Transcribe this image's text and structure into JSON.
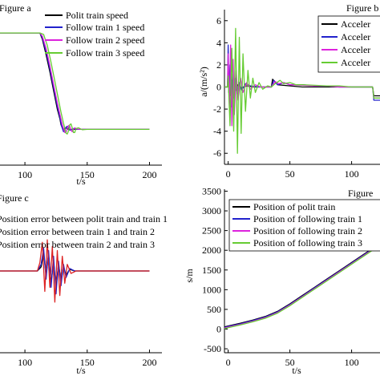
{
  "chart_data": [
    {
      "panel_label": "Figure a",
      "type": "line",
      "xlabel": "t/s",
      "x_ticks": [
        100,
        150,
        200
      ],
      "xlim": [
        80,
        210
      ],
      "ylim": [
        0,
        1
      ],
      "legend_position": "top-right",
      "series": [
        {
          "name": "Polit train speed",
          "color": "#000000",
          "x": [
            80,
            112,
            114,
            117,
            120,
            123,
            126,
            128,
            129,
            130,
            131,
            132,
            133,
            134,
            135,
            136,
            138,
            140,
            145,
            150,
            200
          ],
          "y": [
            0.85,
            0.85,
            0.81,
            0.71,
            0.6,
            0.48,
            0.36,
            0.3,
            0.26,
            0.24,
            0.23,
            0.235,
            0.24,
            0.235,
            0.23,
            0.23,
            0.23,
            0.23,
            0.23,
            0.23,
            0.23
          ]
        },
        {
          "name": "Follow train 1 speed",
          "color": "#2222cc",
          "x": [
            80,
            112,
            114,
            117,
            120,
            123,
            126,
            128,
            129.5,
            131,
            132,
            133,
            134,
            135,
            136,
            137,
            139,
            142,
            145,
            150,
            200
          ],
          "y": [
            0.85,
            0.85,
            0.82,
            0.73,
            0.62,
            0.5,
            0.38,
            0.31,
            0.25,
            0.215,
            0.22,
            0.245,
            0.25,
            0.24,
            0.225,
            0.225,
            0.235,
            0.23,
            0.23,
            0.23,
            0.23
          ]
        },
        {
          "name": "Follow train 2 speed",
          "color": "#dd22dd",
          "x": [
            80,
            112,
            114,
            117,
            120,
            123,
            126,
            128,
            130,
            132,
            133,
            134,
            135,
            136,
            137,
            138,
            139,
            140,
            142,
            145,
            150,
            200
          ],
          "y": [
            0.85,
            0.85,
            0.83,
            0.75,
            0.64,
            0.52,
            0.4,
            0.33,
            0.26,
            0.21,
            0.21,
            0.235,
            0.255,
            0.25,
            0.225,
            0.215,
            0.23,
            0.24,
            0.232,
            0.23,
            0.23,
            0.23
          ]
        },
        {
          "name": "Follow train 3 speed",
          "color": "#66cc33",
          "x": [
            80,
            112,
            115,
            118,
            121,
            124,
            127,
            129,
            131,
            133,
            134,
            135,
            136,
            137,
            138,
            139,
            140,
            141,
            143,
            146,
            150,
            200
          ],
          "y": [
            0.85,
            0.85,
            0.84,
            0.77,
            0.66,
            0.54,
            0.42,
            0.34,
            0.27,
            0.205,
            0.2,
            0.22,
            0.26,
            0.265,
            0.24,
            0.21,
            0.21,
            0.235,
            0.24,
            0.228,
            0.23,
            0.23
          ]
        }
      ]
    },
    {
      "panel_label": "Figure b",
      "type": "line",
      "xlabel": "",
      "ylabel": "a/(m/s²)",
      "x_ticks": [
        0,
        50,
        100
      ],
      "y_ticks": [
        -6,
        -4,
        -2,
        0,
        2,
        4,
        6
      ],
      "xlim": [
        -3,
        123
      ],
      "ylim": [
        -7,
        7
      ],
      "legend_position": "top-right",
      "series": [
        {
          "name": "Acceler",
          "color": "#000000",
          "x": [
            -3,
            -0.5,
            0,
            0.5,
            1,
            2,
            3,
            4,
            5,
            6,
            8,
            10,
            15,
            20,
            30,
            35,
            36,
            40,
            50,
            60,
            70,
            80,
            90,
            100,
            110,
            117,
            118,
            123
          ],
          "y": [
            0,
            0,
            2.0,
            -0.5,
            0.8,
            -0.8,
            0.6,
            -0.4,
            0.4,
            -0.3,
            0.2,
            -0.1,
            0.1,
            0,
            0,
            0,
            0.7,
            0.2,
            0.1,
            0,
            0,
            0,
            0,
            0,
            0,
            0,
            -0.8,
            -0.8
          ]
        },
        {
          "name": "Acceler",
          "color": "#2222cc",
          "x": [
            -3,
            -0.5,
            0,
            0.7,
            1.5,
            2.5,
            3.5,
            4.5,
            5.5,
            7,
            9,
            11,
            14,
            18,
            25,
            30,
            35,
            37,
            40,
            45,
            50,
            60,
            70,
            80,
            90,
            100,
            110,
            117,
            118,
            123
          ],
          "y": [
            0,
            0,
            3.8,
            -0.6,
            2.0,
            -1.8,
            1.2,
            -1.0,
            0.8,
            -0.6,
            0.4,
            -0.3,
            0.3,
            0.1,
            0,
            0,
            0,
            0.6,
            0.2,
            0.4,
            0.2,
            0.2,
            0.1,
            0.1,
            0,
            0,
            0,
            0,
            -1.2,
            -1.2
          ]
        },
        {
          "name": "Acceler",
          "color": "#dd22dd",
          "x": [
            -3,
            -0.5,
            0,
            1,
            2,
            3,
            4,
            5,
            6.5,
            8,
            10,
            12,
            15,
            18,
            22,
            26,
            30,
            35,
            38,
            41,
            45,
            50,
            60,
            70,
            80,
            90,
            100,
            110,
            117,
            118,
            123
          ],
          "y": [
            0,
            0,
            3.0,
            -2.0,
            3.8,
            -3.5,
            2.5,
            -2.5,
            1.5,
            -1.2,
            0.8,
            -0.5,
            0.4,
            -0.2,
            0.2,
            0,
            0,
            0,
            0.5,
            0.3,
            0.4,
            0.2,
            0.15,
            0.1,
            0.1,
            0,
            0,
            0,
            0,
            -1.0,
            -1.0
          ]
        },
        {
          "name": "Acceler",
          "color": "#66cc33",
          "x": [
            -3,
            -0.5,
            0,
            1.5,
            3,
            4.5,
            6,
            7.5,
            9,
            10.5,
            12,
            14,
            16,
            18,
            20,
            22,
            25,
            28,
            32,
            35,
            38,
            42,
            45,
            50,
            55,
            60,
            70,
            80,
            90,
            100,
            110,
            117,
            118,
            123
          ],
          "y": [
            0,
            0,
            1.0,
            -3.5,
            3.5,
            -4.0,
            5.3,
            -6.0,
            4.5,
            -4.2,
            3.0,
            -2.2,
            1.5,
            -1.0,
            0.8,
            -0.5,
            0.4,
            -0.2,
            0.1,
            0,
            0.3,
            0.6,
            0.3,
            0.4,
            0.2,
            0.2,
            0.15,
            0.1,
            0.1,
            0,
            0,
            0,
            -1.0,
            -1.0
          ]
        }
      ]
    },
    {
      "panel_label": "Figure c",
      "type": "line",
      "xlabel": "t/s",
      "x_ticks": [
        100,
        150,
        200
      ],
      "xlim": [
        80,
        210
      ],
      "ylim": [
        -1,
        1
      ],
      "legend_position": "top-right",
      "series": [
        {
          "name": "Position error between polit train and train 1",
          "color": "#000000",
          "x": [
            80,
            110,
            113,
            115,
            117,
            119,
            121,
            123,
            125,
            127,
            129,
            131,
            133,
            136,
            140,
            150,
            200
          ],
          "y": [
            0,
            0,
            0.05,
            0.22,
            -0.05,
            0.2,
            -0.15,
            0.12,
            -0.2,
            0.08,
            -0.12,
            0.05,
            -0.05,
            0.02,
            0,
            0,
            0
          ]
        },
        {
          "name": "Position error between  train 1 and train 2",
          "color": "#2222cc",
          "x": [
            80,
            110,
            113,
            115,
            117,
            119,
            121,
            123,
            125,
            127,
            129,
            131,
            133,
            136,
            140,
            150,
            200
          ],
          "y": [
            0,
            0,
            0.08,
            0.28,
            -0.1,
            0.25,
            -0.2,
            0.18,
            -0.28,
            0.12,
            -0.18,
            0.08,
            -0.08,
            0.03,
            0,
            0,
            0
          ]
        },
        {
          "name": "Position error between  train 2 and train 3",
          "color": "#dd2222",
          "x": [
            80,
            110,
            112,
            114,
            116,
            118,
            120,
            122,
            124,
            126,
            128,
            130,
            132,
            134,
            137,
            141,
            150,
            200
          ],
          "y": [
            0,
            0,
            0.1,
            0.35,
            -0.25,
            0.38,
            -0.2,
            0.3,
            -0.38,
            0.25,
            -0.3,
            0.18,
            -0.15,
            0.08,
            -0.03,
            0,
            0,
            0
          ]
        }
      ]
    },
    {
      "panel_label": "Figure",
      "type": "line",
      "xlabel": "t/s",
      "ylabel": "s/m",
      "x_ticks": [
        0,
        50,
        100
      ],
      "y_ticks": [
        -500,
        0,
        500,
        1000,
        1500,
        2000,
        2500,
        3000,
        3500
      ],
      "xlim": [
        -3,
        123
      ],
      "ylim": [
        -600,
        3550
      ],
      "legend_position": "top-left",
      "series": [
        {
          "name": "Position of polit train",
          "color": "#000000",
          "x": [
            -3,
            0,
            10,
            20,
            30,
            40,
            50,
            60,
            70,
            80,
            90,
            100,
            110,
            120,
            123
          ],
          "y": [
            55,
            80,
            150,
            230,
            320,
            450,
            640,
            850,
            1060,
            1270,
            1480,
            1690,
            1900,
            2110,
            2170
          ]
        },
        {
          "name": "Position of following train 1",
          "color": "#2222cc",
          "x": [
            -3,
            0,
            10,
            20,
            30,
            40,
            50,
            60,
            70,
            80,
            90,
            100,
            110,
            120,
            123
          ],
          "y": [
            40,
            65,
            135,
            215,
            305,
            435,
            625,
            835,
            1045,
            1255,
            1465,
            1675,
            1885,
            2095,
            2155
          ]
        },
        {
          "name": "Position of following train 2",
          "color": "#dd22dd",
          "x": [
            -3,
            0,
            10,
            20,
            30,
            40,
            50,
            60,
            70,
            80,
            90,
            100,
            110,
            120,
            123
          ],
          "y": [
            25,
            50,
            120,
            200,
            290,
            420,
            610,
            820,
            1030,
            1240,
            1450,
            1660,
            1870,
            2080,
            2140
          ]
        },
        {
          "name": "Position of following train 3",
          "color": "#66cc33",
          "x": [
            -3,
            0,
            10,
            20,
            30,
            40,
            50,
            60,
            70,
            80,
            90,
            100,
            110,
            120,
            123
          ],
          "y": [
            10,
            35,
            105,
            185,
            275,
            405,
            595,
            805,
            1015,
            1225,
            1435,
            1645,
            1855,
            2065,
            2125
          ]
        }
      ]
    }
  ]
}
